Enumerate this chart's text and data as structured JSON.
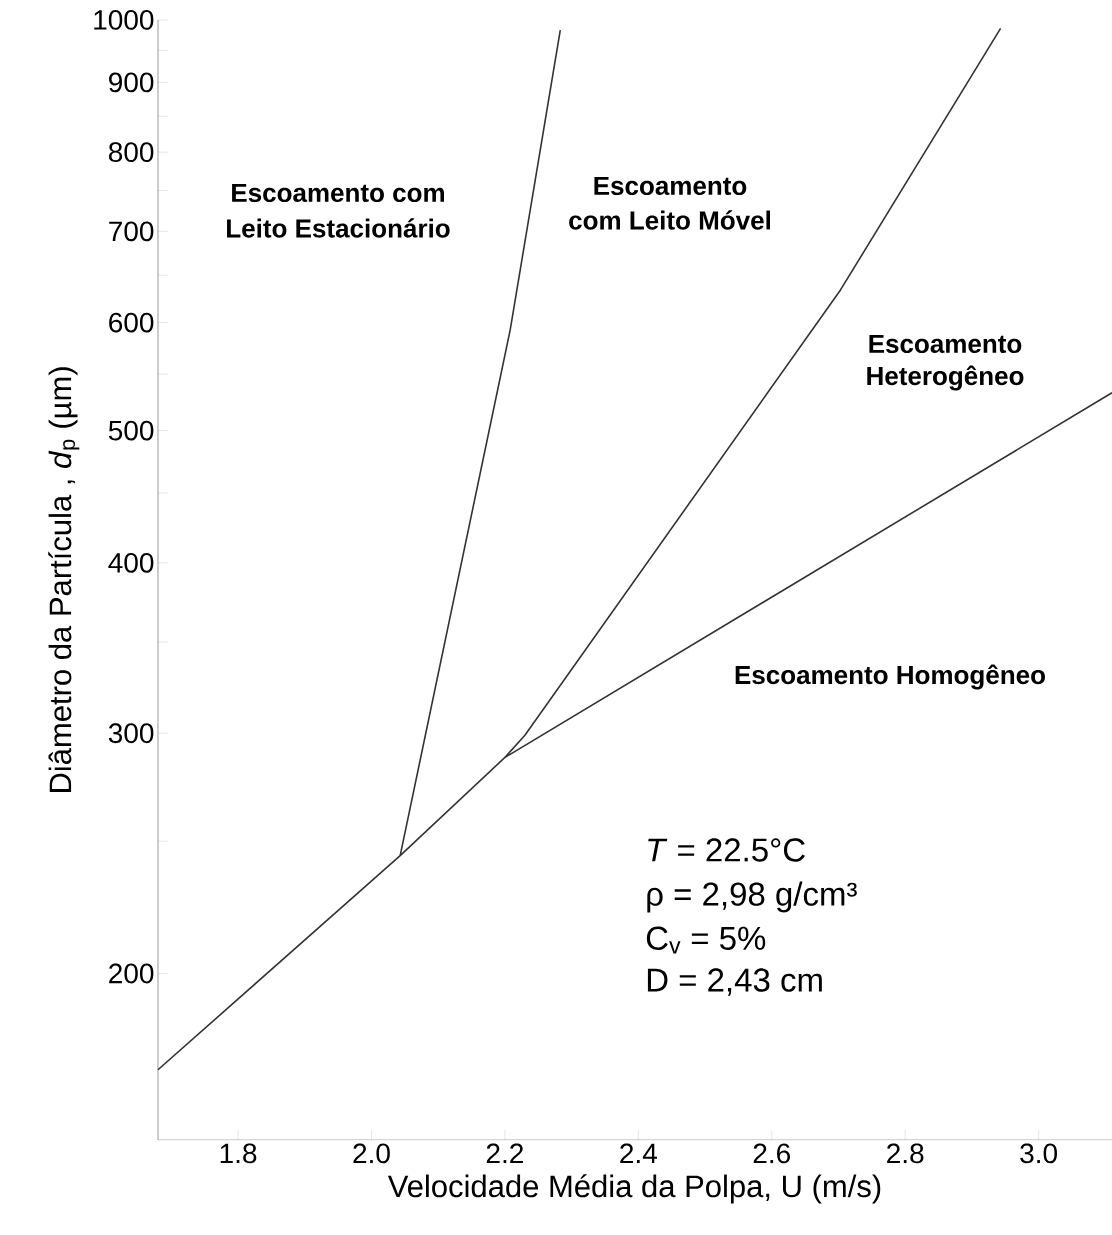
{
  "chart_data": {
    "type": "line",
    "xlabel": "Velocidade Média da Polpa, U (m/s)",
    "ylabel": "Diâmetro da Partícula , *d*$_{p}$ (µm)",
    "series": [
      {
        "color": "#333333",
        "x": [
          1.68,
          2.043,
          2.2,
          3.11
        ],
        "values": [
          170,
          244,
          288,
          533
        ]
      },
      {
        "color": "#333333",
        "x": [
          2.043,
          2.208,
          2.283
        ],
        "values": [
          244,
          593,
          983
        ]
      },
      {
        "color": "#333333",
        "x": [
          2.2,
          2.23,
          2.703,
          2.943
        ],
        "values": [
          288,
          299,
          634,
          986
        ]
      }
    ],
    "xlim": [
      1.68,
      3.11
    ],
    "ylim": [
      151,
      1000
    ],
    "log": "y",
    "xticks": [
      1.8,
      {
        "value": 2.0,
        "label": "2.0"
      },
      2.2,
      2.4,
      2.6,
      2.8,
      {
        "value": 3.0,
        "label": "3.0"
      }
    ],
    "yticks": [
      200,
      {
        "value": 250,
        "label": null
      },
      300,
      {
        "value": 350,
        "label": null
      },
      400,
      {
        "value": 450,
        "label": null
      },
      500,
      {
        "value": 550,
        "label": null
      },
      600,
      {
        "value": 650,
        "label": null
      },
      700,
      {
        "value": 750,
        "label": null
      },
      800,
      {
        "value": 850,
        "label": null
      },
      900,
      {
        "value": 950,
        "label": null
      },
      1000
    ],
    "annotations": [
      "Escoamento com",
      "Leito Estacionário",
      "Escoamento",
      "com Leito Móvel",
      "Escoamento",
      "Heterogêneo",
      "Escoamento Homogêneo",
      "*T* = 22.5°C",
      "ρ = 2,98 g/cm³",
      "C$_{v}$ = 5%",
      "D = 2,43 cm"
    ],
    "grid": false,
    "marker": "none",
    "line_style": "solid"
  }
}
